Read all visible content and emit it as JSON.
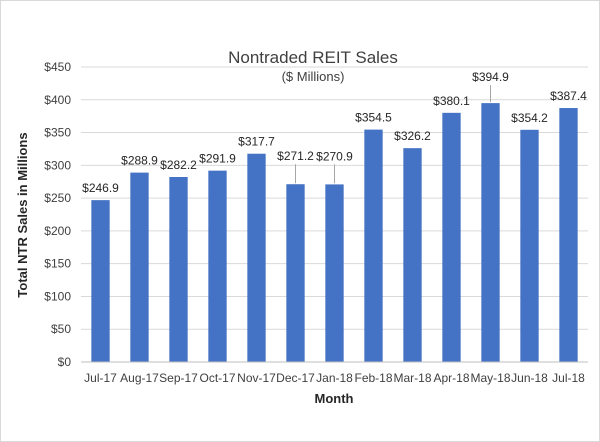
{
  "chart_data": {
    "type": "bar",
    "title": "Nontraded REIT Sales",
    "subtitle": "($ Millions)",
    "xlabel": "Month",
    "ylabel": "Total NTR Sales in Millions",
    "categories": [
      "Jul-17",
      "Aug-17",
      "Sep-17",
      "Oct-17",
      "Nov-17",
      "Dec-17",
      "Jan-18",
      "Feb-18",
      "Mar-18",
      "Apr-18",
      "May-18",
      "Jun-18",
      "Jul-18"
    ],
    "values": [
      246.9,
      288.9,
      282.2,
      291.9,
      317.7,
      271.2,
      270.9,
      354.5,
      326.2,
      380.1,
      394.9,
      354.2,
      387.4
    ],
    "data_labels": [
      "$246.9",
      "$288.9",
      "$282.2",
      "$291.9",
      "$317.7",
      "$271.2",
      "$270.9",
      "$354.5",
      "$326.2",
      "$380.1",
      "$394.9",
      "$354.2",
      "$387.4"
    ],
    "ylim": [
      0,
      450
    ],
    "yticks": [
      0,
      50,
      100,
      150,
      200,
      250,
      300,
      350,
      400,
      450
    ],
    "ytick_labels": [
      "$0",
      "$50",
      "$100",
      "$150",
      "$200",
      "$250",
      "$300",
      "$350",
      "$400",
      "$450"
    ],
    "grid": true,
    "bar_color": "#4472c4",
    "grid_color": "#d9d9d9"
  }
}
